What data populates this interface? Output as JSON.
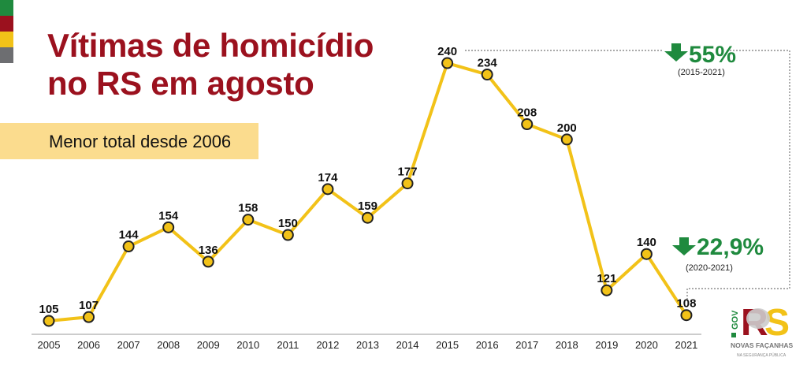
{
  "title_lines": [
    "Vítimas de homicídio",
    "no RS em agosto"
  ],
  "subtitle": "Menor total desde 2006",
  "colors": {
    "title": "#9b111e",
    "line": "#f2c218",
    "green": "#1f8a3e",
    "stripes": [
      "#1f8a3e",
      "#9b111e",
      "#f2c218",
      "#6d6e71"
    ]
  },
  "annotations": [
    {
      "icon": "arrow-down-icon",
      "value": "55%",
      "period": "(2015-2021)"
    },
    {
      "icon": "arrow-down-icon",
      "value": "22,9%",
      "period": "(2020-2021)"
    }
  ],
  "logo": {
    "text": "GOV RS",
    "tagline": "NOVAS FAÇANHAS",
    "subtag": "NA SEGURANÇA PÚBLICA"
  },
  "chart_data": {
    "type": "line",
    "title": "Vítimas de homicídio no RS em agosto",
    "xlabel": "",
    "ylabel": "",
    "grid": false,
    "legend": "none",
    "categories": [
      "2005",
      "2006",
      "2007",
      "2008",
      "2009",
      "2010",
      "2011",
      "2012",
      "2013",
      "2014",
      "2015",
      "2016",
      "2017",
      "2018",
      "2019",
      "2020",
      "2021"
    ],
    "values": [
      105,
      107,
      144,
      154,
      136,
      158,
      150,
      174,
      159,
      177,
      240,
      234,
      208,
      200,
      121,
      140,
      108
    ]
  }
}
